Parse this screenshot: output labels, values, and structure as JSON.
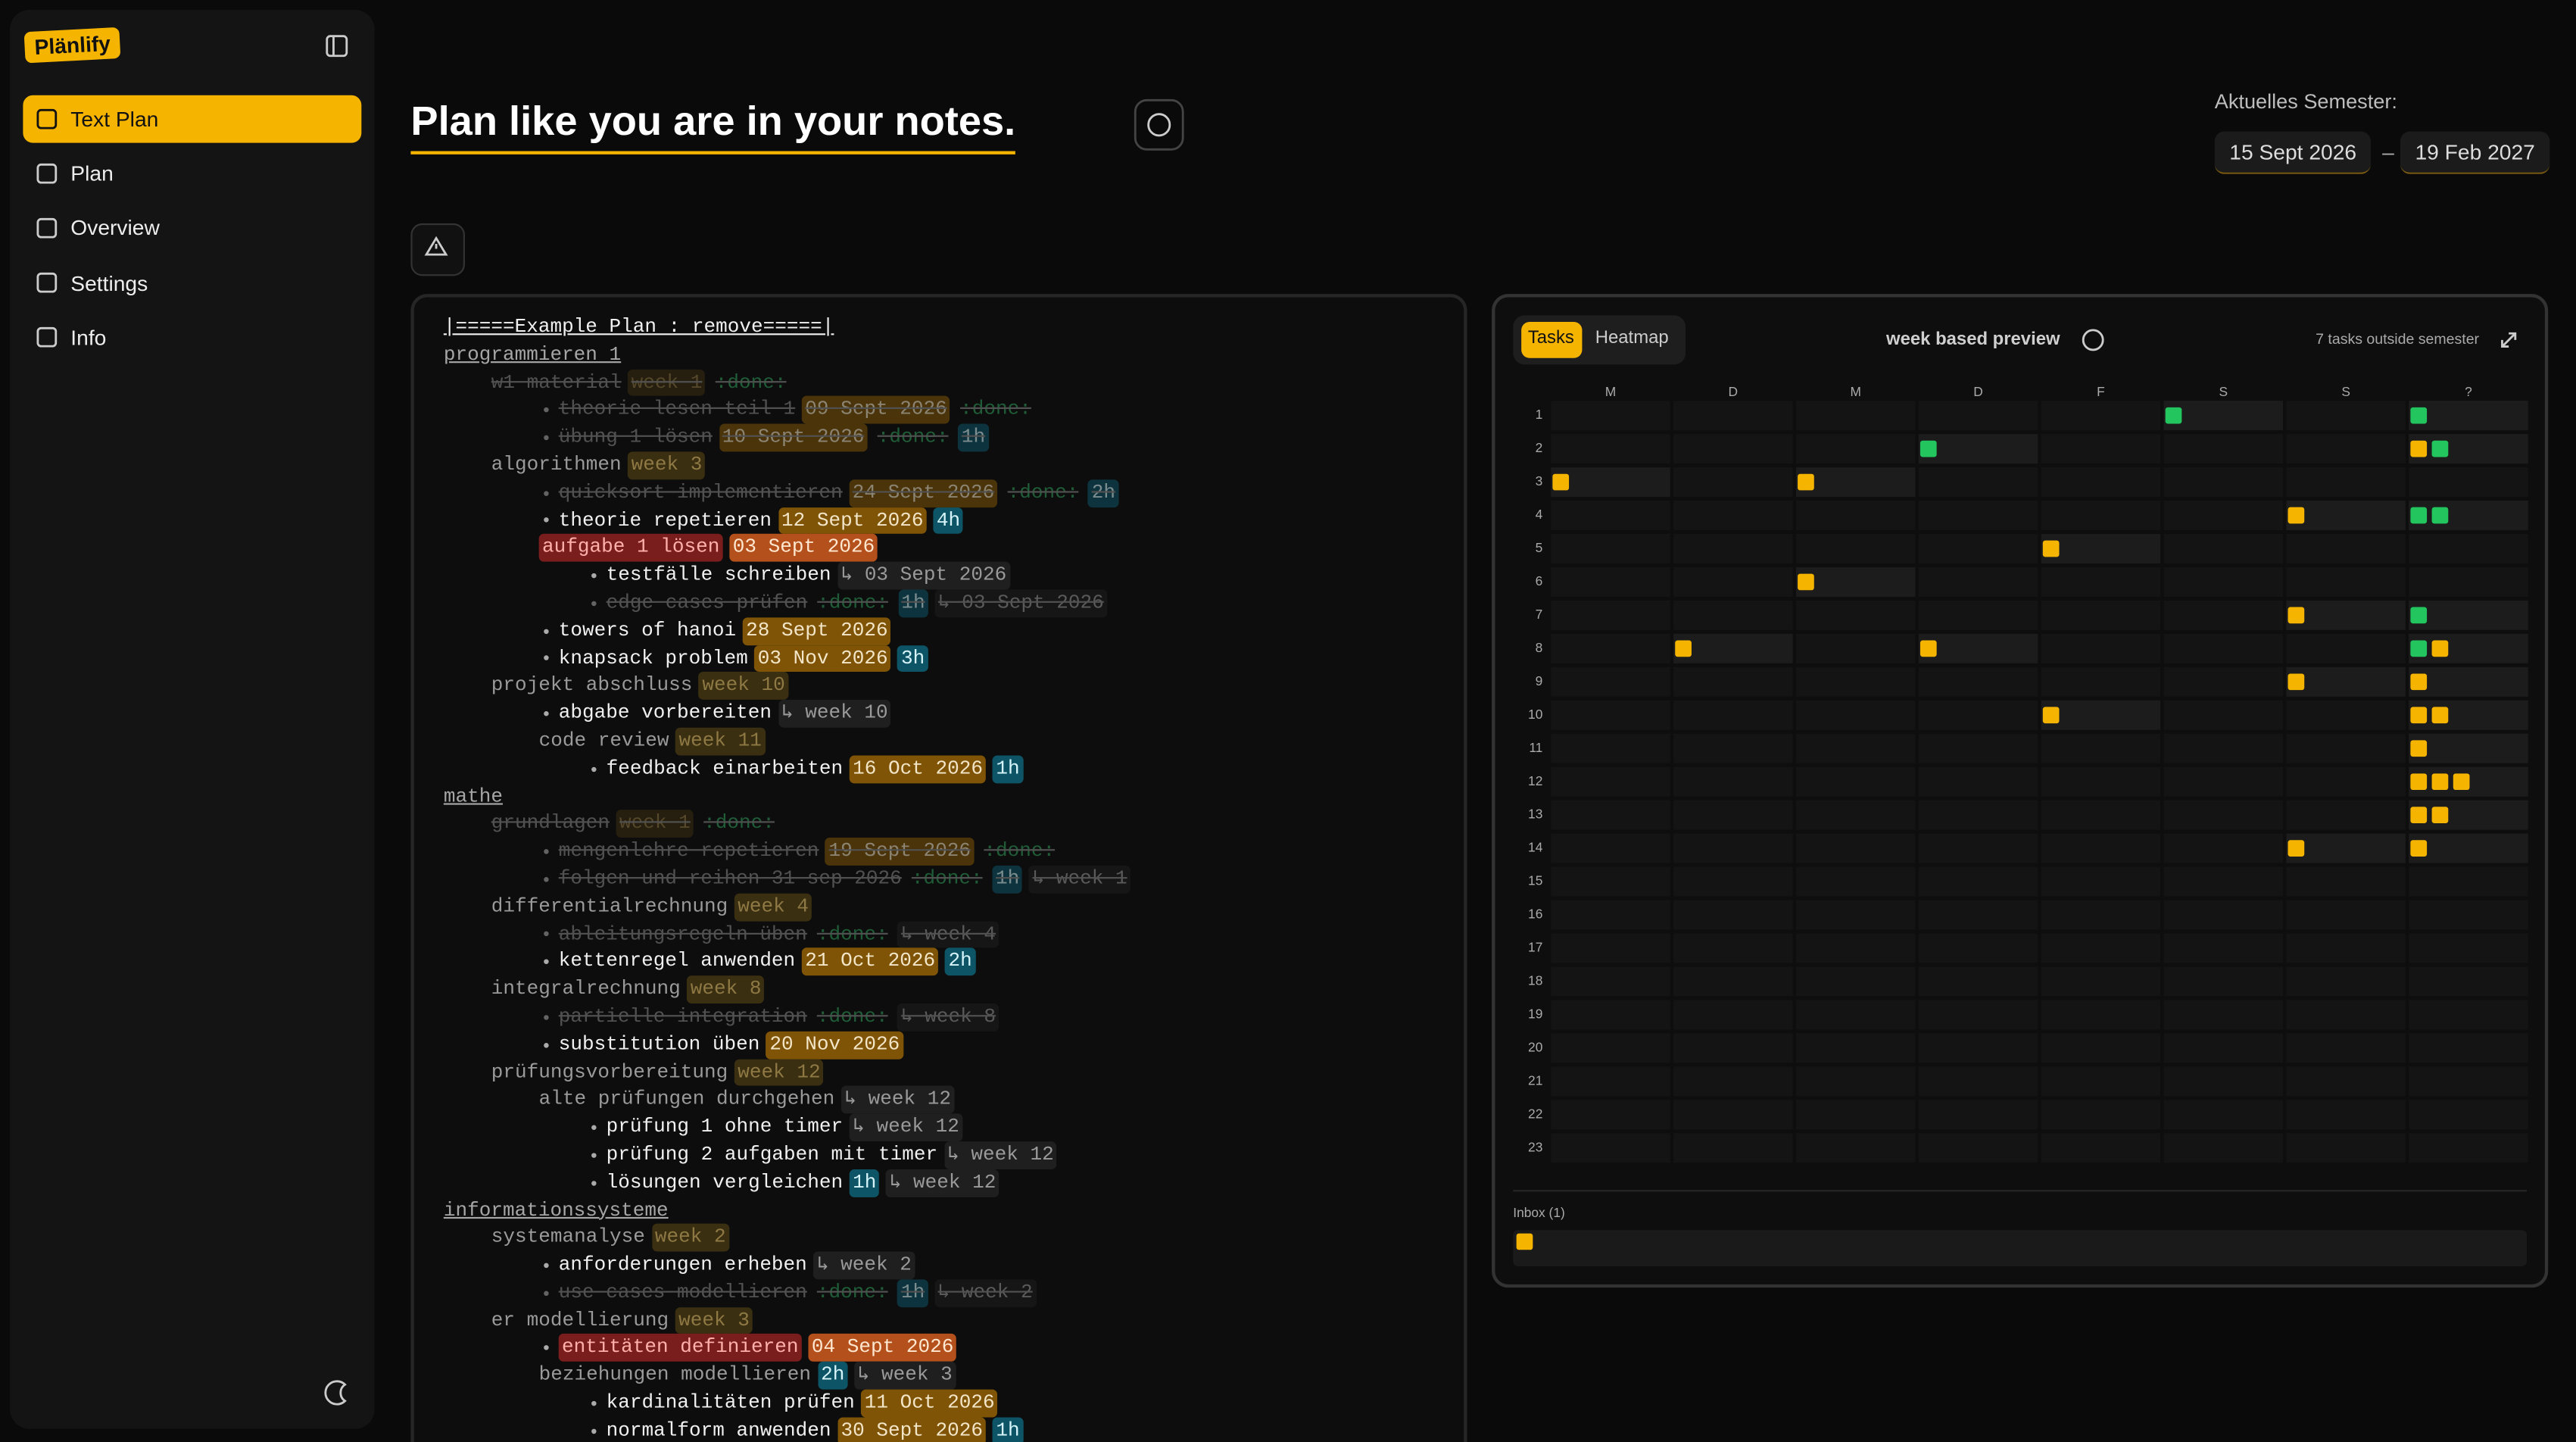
{
  "sidebar": {
    "logo": "Plänlify",
    "nav": [
      "Text Plan",
      "Plan",
      "Overview",
      "Settings",
      "Info"
    ],
    "active": 0
  },
  "header": {
    "title": "Plan like you are in your notes.",
    "semester": {
      "label": "Aktuelles Semester:",
      "start": "15 Sept 2026",
      "separator": "–",
      "end": "19 Feb 2027"
    }
  },
  "tag_styles": {
    "date": {
      "bg": "#7f5406",
      "fg": "#f3e6c8"
    },
    "week": {
      "bg": "#3b2f12",
      "fg": "#8e7843"
    },
    "hours": {
      "bg": "#0d5566",
      "fg": "#d6f4fa"
    },
    "done": {
      "bg": "transparent",
      "fg": "#2f9e5a"
    },
    "ref": {
      "bg": "#1f1f1f",
      "fg": "#9a9a9a"
    }
  },
  "editor": {
    "title": "|=====Example Plan : remove=====|",
    "items": [
      {
        "text": "programmieren 1",
        "children": [
          {
            "text": "w1 material",
            "done": true,
            "tags": [
              {
                "text": "week 1",
                "style": "week"
              },
              {
                "text": ":done:",
                "style": "done"
              }
            ],
            "children": [
              {
                "text": "theorie lesen teil 1",
                "done": true,
                "tags": [
                  {
                    "text": "09 Sept 2026",
                    "style": "date"
                  },
                  {
                    "text": ":done:",
                    "style": "done"
                  }
                ]
              },
              {
                "text": "übung 1 lösen",
                "done": true,
                "tags": [
                  {
                    "text": "10 Sept 2026",
                    "style": "date"
                  },
                  {
                    "text": ":done:",
                    "style": "done"
                  },
                  {
                    "text": "1h",
                    "style": "hours"
                  }
                ]
              }
            ]
          },
          {
            "text": "algorithmen",
            "tags": [
              {
                "text": "week 3",
                "style": "week"
              }
            ],
            "children": [
              {
                "text": "quicksort implementieren",
                "done": true,
                "tags": [
                  {
                    "text": "24 Sept 2026",
                    "style": "date"
                  },
                  {
                    "text": ":done:",
                    "style": "done"
                  },
                  {
                    "text": "2h",
                    "style": "hours"
                  }
                ]
              },
              {
                "text": "theorie repetieren",
                "tags": [
                  {
                    "text": "12 Sept 2026",
                    "style": "date"
                  },
                  {
                    "text": "4h",
                    "style": "hours"
                  }
                ]
              },
              {
                "text": "aufgabe 1 lösen",
                "overdue": true,
                "tags": [
                  {
                    "text": "03 Sept 2026",
                    "style": "date"
                  }
                ],
                "children": [
                  {
                    "text": "testfälle schreiben",
                    "tags": [
                      {
                        "text": "↳ 03 Sept 2026",
                        "style": "ref"
                      }
                    ]
                  },
                  {
                    "text": "edge cases prüfen",
                    "done": true,
                    "tags": [
                      {
                        "text": ":done:",
                        "style": "done"
                      },
                      {
                        "text": "1h",
                        "style": "hours"
                      },
                      {
                        "text": "↳ 03 Sept 2026",
                        "style": "ref"
                      }
                    ]
                  }
                ]
              },
              {
                "text": "towers of hanoi",
                "tags": [
                  {
                    "text": "28 Sept 2026",
                    "style": "date"
                  }
                ]
              },
              {
                "text": "knapsack problem",
                "tags": [
                  {
                    "text": "03 Nov 2026",
                    "style": "date"
                  },
                  {
                    "text": "3h",
                    "style": "hours"
                  }
                ]
              }
            ]
          },
          {
            "text": "projekt abschluss",
            "tags": [
              {
                "text": "week 10",
                "style": "week"
              }
            ],
            "children": [
              {
                "text": "abgabe vorbereiten",
                "tags": [
                  {
                    "text": "↳ week 10",
                    "style": "ref"
                  }
                ]
              },
              {
                "text": "code review",
                "tags": [
                  {
                    "text": "week 11",
                    "style": "week"
                  }
                ],
                "children": [
                  {
                    "text": "feedback einarbeiten",
                    "tags": [
                      {
                        "text": "16 Oct 2026",
                        "style": "date"
                      },
                      {
                        "text": "1h",
                        "style": "hours"
                      }
                    ]
                  }
                ]
              }
            ]
          }
        ]
      },
      {
        "text": "mathe",
        "children": [
          {
            "text": "grundlagen",
            "done": true,
            "tags": [
              {
                "text": "week 1",
                "style": "week"
              },
              {
                "text": ":done:",
                "style": "done"
              }
            ],
            "children": [
              {
                "text": "mengenlehre repetieren",
                "done": true,
                "tags": [
                  {
                    "text": "19 Sept 2026",
                    "style": "date"
                  },
                  {
                    "text": ":done:",
                    "style": "done"
                  }
                ]
              },
              {
                "text": "folgen und reihen 31 sep 2026",
                "done": true,
                "tags": [
                  {
                    "text": ":done:",
                    "style": "done"
                  },
                  {
                    "text": "1h",
                    "style": "hours"
                  },
                  {
                    "text": "↳ week 1",
                    "style": "ref"
                  }
                ]
              }
            ]
          },
          {
            "text": "differentialrechnung",
            "tags": [
              {
                "text": "week 4",
                "style": "week"
              }
            ],
            "children": [
              {
                "text": "ableitungsregeln üben",
                "done": true,
                "tags": [
                  {
                    "text": ":done:",
                    "style": "done"
                  },
                  {
                    "text": "↳ week 4",
                    "style": "ref"
                  }
                ]
              },
              {
                "text": "kettenregel anwenden",
                "tags": [
                  {
                    "text": "21 Oct 2026",
                    "style": "date"
                  },
                  {
                    "text": "2h",
                    "style": "hours"
                  }
                ]
              }
            ]
          },
          {
            "text": "integralrechnung",
            "tags": [
              {
                "text": "week 8",
                "style": "week"
              }
            ],
            "children": [
              {
                "text": "partielle integration",
                "done": true,
                "tags": [
                  {
                    "text": ":done:",
                    "style": "done"
                  },
                  {
                    "text": "↳ week 8",
                    "style": "ref"
                  }
                ]
              },
              {
                "text": "substitution üben",
                "tags": [
                  {
                    "text": "20 Nov 2026",
                    "style": "date"
                  }
                ]
              }
            ]
          },
          {
            "text": "prüfungsvorbereitung",
            "tags": [
              {
                "text": "week 12",
                "style": "week"
              }
            ],
            "children": [
              {
                "text": "alte prüfungen durchgehen",
                "tags": [
                  {
                    "text": "↳ week 12",
                    "style": "ref"
                  }
                ],
                "children": [
                  {
                    "text": "prüfung 1 ohne timer",
                    "tags": [
                      {
                        "text": "↳ week 12",
                        "style": "ref"
                      }
                    ]
                  },
                  {
                    "text": "prüfung 2 aufgaben mit timer",
                    "tags": [
                      {
                        "text": "↳ week 12",
                        "style": "ref"
                      }
                    ]
                  },
                  {
                    "text": "lösungen vergleichen",
                    "tags": [
                      {
                        "text": "1h",
                        "style": "hours"
                      },
                      {
                        "text": "↳ week 12",
                        "style": "ref"
                      }
                    ]
                  }
                ]
              }
            ]
          }
        ]
      },
      {
        "text": "informationssysteme",
        "children": [
          {
            "text": "systemanalyse",
            "tags": [
              {
                "text": "week 2",
                "style": "week"
              }
            ],
            "children": [
              {
                "text": "anforderungen erheben",
                "tags": [
                  {
                    "text": "↳ week 2",
                    "style": "ref"
                  }
                ]
              },
              {
                "text": "use cases modellieren",
                "done": true,
                "tags": [
                  {
                    "text": ":done:",
                    "style": "done"
                  },
                  {
                    "text": "1h",
                    "style": "hours"
                  },
                  {
                    "text": "↳ week 2",
                    "style": "ref"
                  }
                ]
              }
            ]
          },
          {
            "text": "er modellierung",
            "tags": [
              {
                "text": "week 3",
                "style": "week"
              }
            ],
            "children": [
              {
                "text": "entitäten definieren",
                "overdue": true,
                "tags": [
                  {
                    "text": "04 Sept 2026",
                    "style": "date"
                  }
                ]
              },
              {
                "text": "beziehungen modellieren",
                "tags": [
                  {
                    "text": "2h",
                    "style": "hours"
                  },
                  {
                    "text": "↳ week 3",
                    "style": "ref"
                  }
                ],
                "children": [
                  {
                    "text": "kardinalitäten prüfen",
                    "tags": [
                      {
                        "text": "11 Oct 2026",
                        "style": "date"
                      }
                    ]
                  },
                  {
                    "text": "normalform anwenden",
                    "tags": [
                      {
                        "text": "30 Sept 2026",
                        "style": "date"
                      },
                      {
                        "text": "1h",
                        "style": "hours"
                      }
                    ]
                  }
                ]
              }
            ]
          }
        ]
      }
    ]
  },
  "preview": {
    "tabs": [
      "Tasks",
      "Heatmap"
    ],
    "active_tab": 0,
    "title": "week based preview",
    "outside": "7 tasks outside semester",
    "task_colors": {
      "open": "#f5b400",
      "done": "#22c55e"
    },
    "columns": [
      "M",
      "D",
      "M",
      "D",
      "F",
      "S",
      "S",
      "?"
    ],
    "weeks": [
      {
        "label": 1,
        "cells": [
          [],
          [],
          [],
          [],
          [],
          [
            "done"
          ],
          [],
          [
            "done"
          ]
        ]
      },
      {
        "label": 2,
        "cells": [
          [],
          [],
          [],
          [
            "done"
          ],
          [],
          [],
          [],
          [
            "open",
            "done"
          ]
        ]
      },
      {
        "label": 3,
        "cells": [
          [
            "open"
          ],
          [],
          [
            "open"
          ],
          [],
          [],
          [],
          [],
          []
        ]
      },
      {
        "label": 4,
        "cells": [
          [],
          [],
          [],
          [],
          [],
          [],
          [
            "open"
          ],
          [
            "done",
            "done"
          ]
        ]
      },
      {
        "label": 5,
        "cells": [
          [],
          [],
          [],
          [],
          [
            "open"
          ],
          [],
          [],
          []
        ]
      },
      {
        "label": 6,
        "cells": [
          [],
          [],
          [
            "open"
          ],
          [],
          [],
          [],
          [],
          []
        ]
      },
      {
        "label": 7,
        "cells": [
          [],
          [],
          [],
          [],
          [],
          [],
          [
            "open"
          ],
          [
            "done"
          ]
        ]
      },
      {
        "label": 8,
        "cells": [
          [],
          [
            "open"
          ],
          [],
          [
            "open"
          ],
          [],
          [],
          [],
          [
            "done",
            "open"
          ]
        ]
      },
      {
        "label": 9,
        "cells": [
          [],
          [],
          [],
          [],
          [],
          [],
          [
            "open"
          ],
          [
            "open"
          ]
        ]
      },
      {
        "label": 10,
        "cells": [
          [],
          [],
          [],
          [],
          [
            "open"
          ],
          [],
          [],
          [
            "open",
            "open"
          ]
        ]
      },
      {
        "label": 11,
        "cells": [
          [],
          [],
          [],
          [],
          [],
          [],
          [],
          [
            "open"
          ]
        ]
      },
      {
        "label": 12,
        "cells": [
          [],
          [],
          [],
          [],
          [],
          [],
          [],
          [
            "open",
            "open",
            "open"
          ]
        ]
      },
      {
        "label": 13,
        "cells": [
          [],
          [],
          [],
          [],
          [],
          [],
          [],
          [
            "open",
            "open"
          ]
        ]
      },
      {
        "label": 14,
        "cells": [
          [],
          [],
          [],
          [],
          [],
          [],
          [
            "open"
          ],
          [
            "open"
          ]
        ]
      },
      {
        "label": 15,
        "cells": [
          [],
          [],
          [],
          [],
          [],
          [],
          [],
          []
        ]
      },
      {
        "label": 16,
        "cells": [
          [],
          [],
          [],
          [],
          [],
          [],
          [],
          []
        ]
      },
      {
        "label": 17,
        "cells": [
          [],
          [],
          [],
          [],
          [],
          [],
          [],
          []
        ]
      },
      {
        "label": 18,
        "cells": [
          [],
          [],
          [],
          [],
          [],
          [],
          [],
          []
        ]
      },
      {
        "label": 19,
        "cells": [
          [],
          [],
          [],
          [],
          [],
          [],
          [],
          []
        ]
      },
      {
        "label": 20,
        "cells": [
          [],
          [],
          [],
          [],
          [],
          [],
          [],
          []
        ]
      },
      {
        "label": 21,
        "cells": [
          [],
          [],
          [],
          [],
          [],
          [],
          [],
          []
        ]
      },
      {
        "label": 22,
        "cells": [
          [],
          [],
          [],
          [],
          [],
          [],
          [],
          []
        ]
      },
      {
        "label": 23,
        "cells": [
          [],
          [],
          [],
          [],
          [],
          [],
          [],
          []
        ]
      }
    ],
    "inbox": {
      "label": "Inbox (1)",
      "tasks": [
        "open"
      ]
    }
  }
}
